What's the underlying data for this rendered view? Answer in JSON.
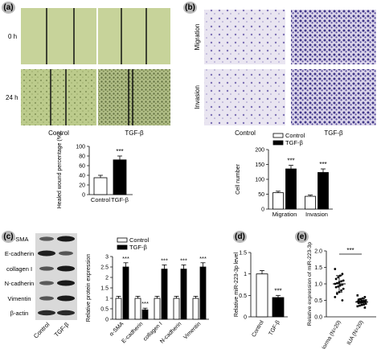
{
  "panel_labels": {
    "a": "(a)",
    "b": "(b)",
    "c": "(c)",
    "d": "(d)",
    "e": "(e)"
  },
  "colors": {
    "tissue_green": "#bccb8c",
    "stain_purple": "#5a4f9e",
    "stain_bg": "#e9e5f1"
  },
  "panel_a": {
    "row_labels": [
      "0 h",
      "24 h"
    ],
    "col_labels": [
      "Control",
      "TGF-β"
    ]
  },
  "panel_b": {
    "row_labels": [
      "Migration",
      "Invasion"
    ],
    "col_labels": [
      "Control",
      "TGF-β"
    ]
  },
  "panel_c_blot": {
    "proteins": [
      "α-SMA",
      "E-cadherin",
      "collagen I",
      "N-cadherin",
      "Vimentin",
      "β-actin"
    ],
    "lanes": [
      "Control",
      "TGF-β"
    ]
  },
  "chart_data": [
    {
      "id": "a-chart",
      "type": "bar",
      "categories": [
        "Control",
        "TGF-β"
      ],
      "values": [
        35,
        72
      ],
      "errors": [
        5,
        8
      ],
      "ylabel": "Healed wound percentage (%)",
      "ylim": [
        0,
        100
      ],
      "yticks": [
        0,
        20,
        40,
        60,
        80,
        100
      ],
      "annotations": [
        {
          "category": "TGF-β",
          "text": "***"
        }
      ]
    },
    {
      "id": "b-chart",
      "type": "bar",
      "categories": [
        "Migration",
        "Invasion"
      ],
      "series": [
        {
          "name": "Control",
          "values": [
            55,
            43
          ],
          "errors": [
            5,
            4
          ]
        },
        {
          "name": "TGF-β",
          "values": [
            135,
            123
          ],
          "errors": [
            12,
            12
          ]
        }
      ],
      "ylabel": "Cell number",
      "ylim": [
        0,
        200
      ],
      "yticks": [
        0,
        50,
        100,
        150,
        200
      ],
      "legend": "top-left",
      "annotations": [
        {
          "category": "Migration",
          "text": "***"
        },
        {
          "category": "Invasion",
          "text": "***"
        }
      ]
    },
    {
      "id": "c-chart",
      "type": "bar",
      "categories": [
        "α-SMA",
        "E-cadherin",
        "collagen I",
        "N-cadherin",
        "Vimentin"
      ],
      "series": [
        {
          "name": "Control",
          "values": [
            1.0,
            1.0,
            1.0,
            1.0,
            1.0
          ],
          "errors": [
            0.1,
            0.1,
            0.1,
            0.1,
            0.1
          ]
        },
        {
          "name": "TGF-β",
          "values": [
            2.5,
            0.45,
            2.4,
            2.4,
            2.5
          ],
          "errors": [
            0.2,
            0.08,
            0.2,
            0.2,
            0.2
          ]
        }
      ],
      "ylabel": "Relative protein expression",
      "ylim": [
        0,
        3
      ],
      "yticks": [
        0,
        0.5,
        1,
        1.5,
        2,
        2.5,
        3
      ],
      "legend": "top",
      "annotations": [
        "***",
        "***",
        "***",
        "***",
        "***"
      ]
    },
    {
      "id": "d-chart",
      "type": "bar",
      "categories": [
        "Control",
        "TGF-β"
      ],
      "values": [
        1.0,
        0.45
      ],
      "errors": [
        0.08,
        0.05
      ],
      "ylabel": "Relative miR-223-3p level",
      "ylim": [
        0,
        1.5
      ],
      "yticks": [
        0,
        0.5,
        1,
        1.5
      ],
      "annotations": [
        {
          "category": "TGF-β",
          "text": "***"
        }
      ]
    },
    {
      "id": "e-chart",
      "type": "scatter",
      "categories": [
        "Norma (N=20)",
        "IUA (N=20)"
      ],
      "groups": [
        {
          "name": "Norma (N=20)",
          "mean": 1.0,
          "sd": 0.25,
          "values": [
            1.45,
            1.3,
            1.25,
            1.2,
            1.15,
            1.1,
            1.08,
            1.05,
            1.02,
            1.0,
            0.98,
            0.95,
            0.92,
            0.9,
            0.85,
            0.8,
            0.75,
            0.7,
            0.6,
            0.5
          ]
        },
        {
          "name": "IUA (N=20)",
          "mean": 0.45,
          "sd": 0.1,
          "values": [
            0.65,
            0.6,
            0.56,
            0.54,
            0.52,
            0.5,
            0.49,
            0.48,
            0.47,
            0.46,
            0.45,
            0.44,
            0.43,
            0.42,
            0.4,
            0.38,
            0.36,
            0.34,
            0.32,
            0.28
          ]
        }
      ],
      "ylabel": "Relative expression of miR-223-3p",
      "ylim": [
        0,
        2.0
      ],
      "yticks": [
        0.0,
        0.5,
        1.0,
        1.5,
        2.0
      ],
      "annotations": [
        {
          "text": "***",
          "bracket": [
            "Norma (N=20)",
            "IUA (N=20)"
          ]
        }
      ]
    }
  ]
}
